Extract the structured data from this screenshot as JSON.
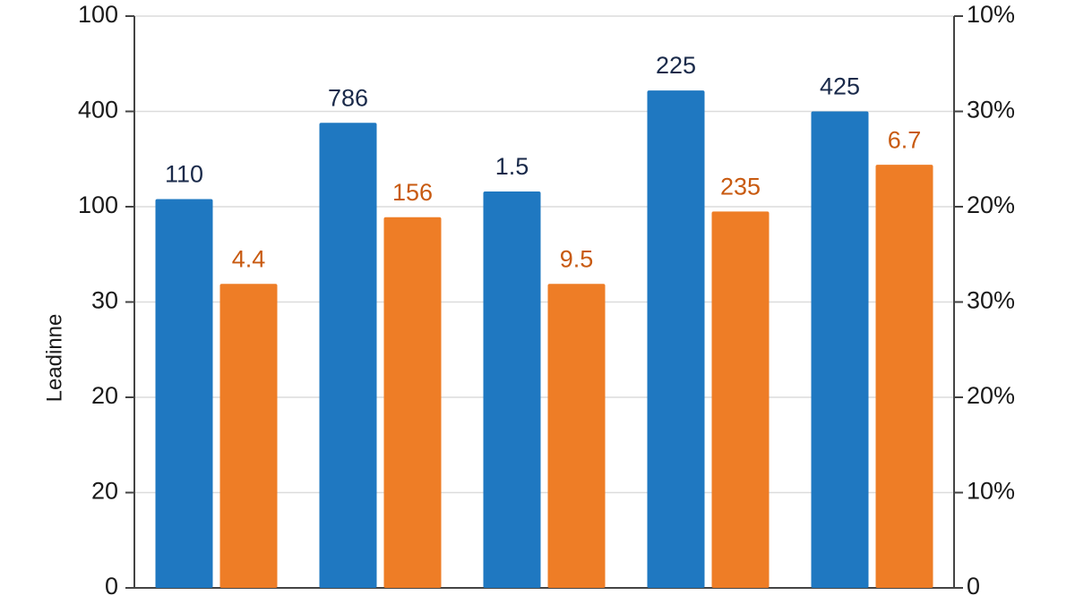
{
  "chart_data": {
    "type": "bar",
    "y_label": "Leadinne",
    "categories": [
      null,
      null,
      null,
      null,
      null
    ],
    "series": [
      {
        "color": "#1f78c1",
        "values": [
          4.08,
          4.88,
          4.16,
          5.22,
          5.0
        ],
        "value_labels": [
          "110",
          "786",
          "1.5",
          "225",
          "425"
        ]
      },
      {
        "color": "#ee7d26",
        "values": [
          3.19,
          3.89,
          3.19,
          3.95,
          4.44
        ],
        "value_labels": [
          "4.4",
          "156",
          "9.5",
          "235",
          "6.7"
        ]
      }
    ],
    "ylim": [
      0,
      6
    ],
    "yticks": [
      0,
      {
        "value": 1,
        "label": "20"
      },
      {
        "value": 2,
        "label": "20"
      },
      {
        "value": 3,
        "label": "30"
      },
      {
        "value": 4,
        "label": "100"
      },
      {
        "value": 5,
        "label": "400"
      },
      {
        "value": 6,
        "label": "100"
      }
    ],
    "y2lim": [
      0,
      6
    ],
    "y2ticks": [
      0,
      {
        "value": 1,
        "label": "10%"
      },
      {
        "value": 2,
        "label": "20%"
      },
      {
        "value": 3,
        "label": "30%"
      },
      {
        "value": 4,
        "label": "20%"
      },
      {
        "value": 5,
        "label": "30%"
      },
      {
        "value": 6,
        "label": "10%"
      }
    ],
    "grid": true
  }
}
